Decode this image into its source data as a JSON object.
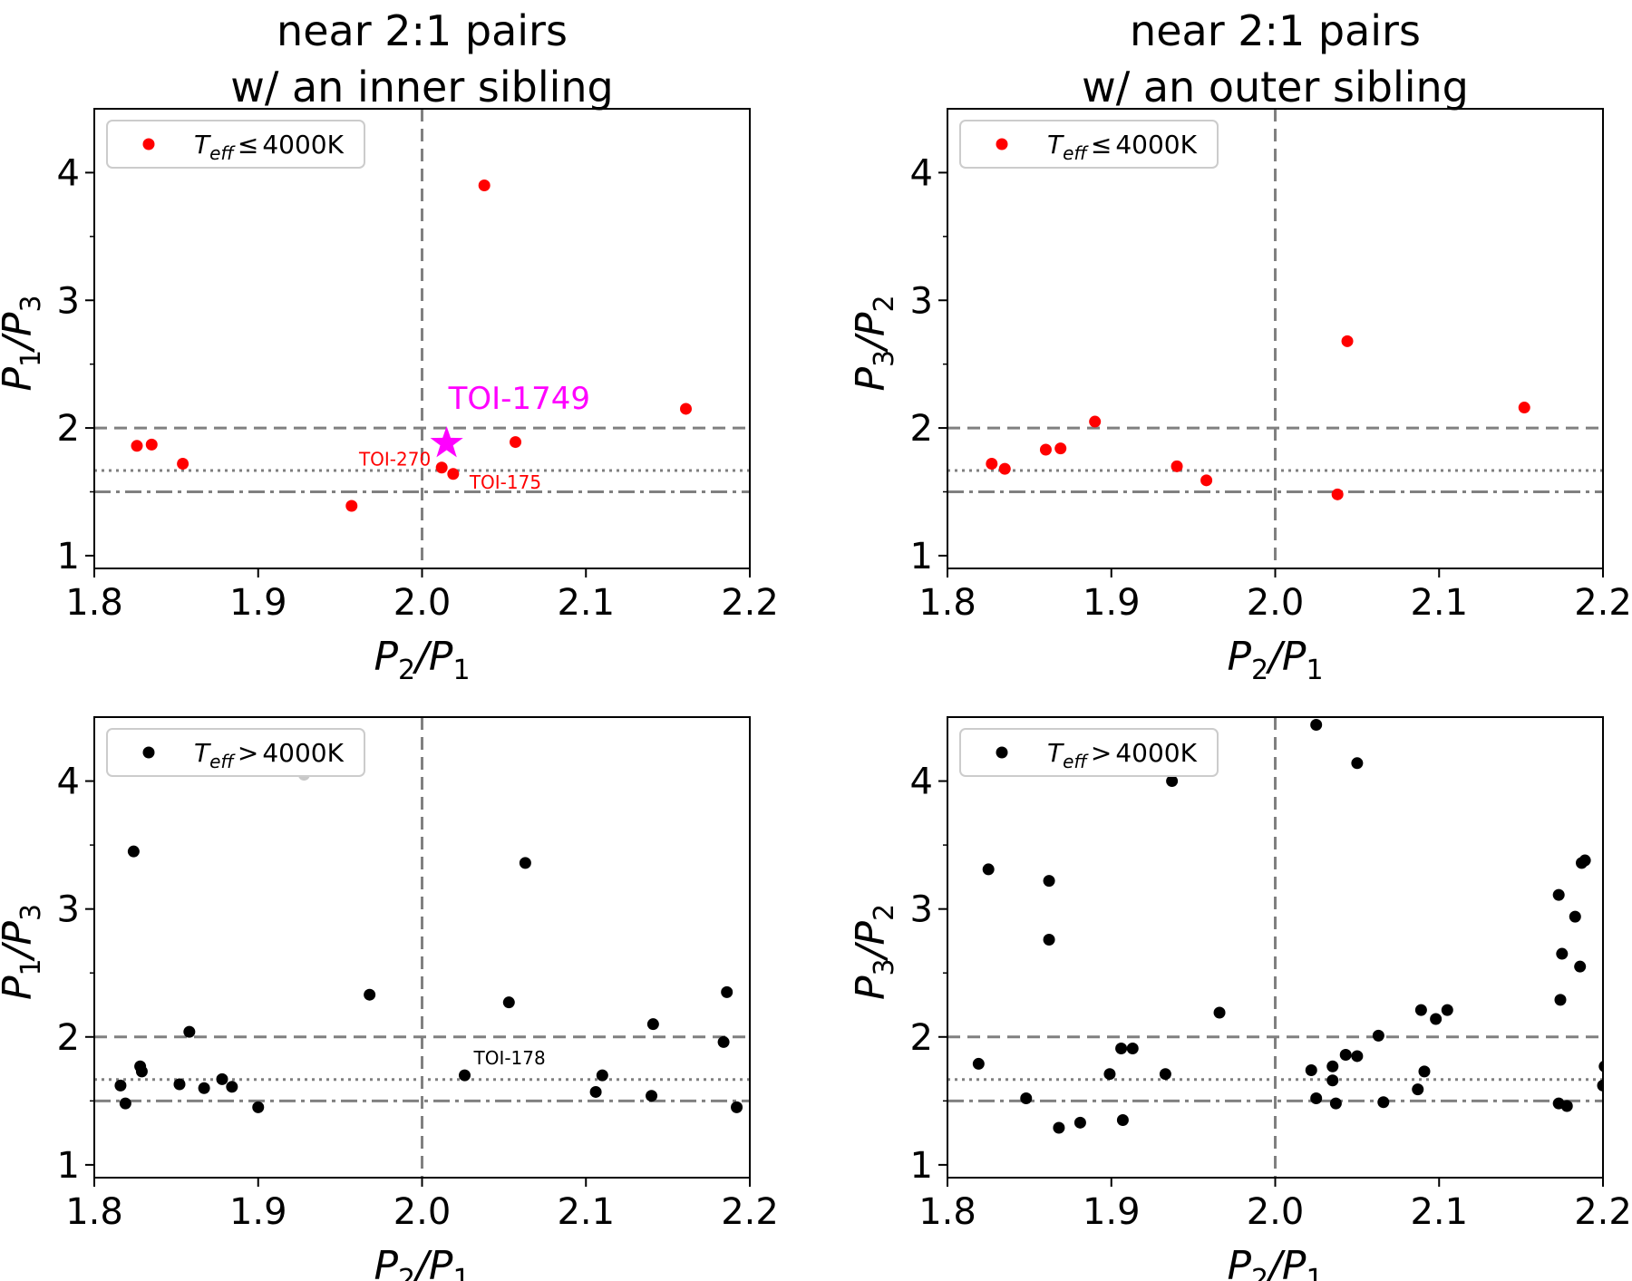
{
  "colors": {
    "cool": "#ff0000",
    "warm": "#000000",
    "outlier": "#c8c8c8",
    "highlight": "#ff00ff",
    "ref_line": "#808080"
  },
  "chart_data": [
    {
      "type": "scatter",
      "title_lines": [
        "near 2:1 pairs",
        "w/ an inner sibling"
      ],
      "xlabel": {
        "main": "P",
        "sub": "2",
        "mid": "/P",
        "sub2": "1"
      },
      "ylabel": {
        "main": "P",
        "sub": "1",
        "mid": "/P",
        "sub2": "3"
      },
      "xlim": [
        1.8,
        2.2
      ],
      "ylim": [
        0.9,
        4.5
      ],
      "xticks": [
        "1.8",
        "1.9",
        "2.0",
        "2.1",
        "2.2"
      ],
      "yticks": [
        "1",
        "2",
        "3",
        "4"
      ],
      "legend": {
        "placement": "upper-left",
        "label": "Teff ≤ 4000K",
        "sym_main": "T",
        "sym_sub": "eff",
        "sym_rel": "≤",
        "sym_val": "4000K"
      },
      "series": [
        {
          "name": "Teff ≤ 4000K",
          "color_key": "cool",
          "points": [
            [
              1.826,
              1.86
            ],
            [
              1.835,
              1.87
            ],
            [
              1.854,
              1.72
            ],
            [
              1.957,
              1.39
            ],
            [
              2.012,
              1.69
            ],
            [
              2.019,
              1.64
            ],
            [
              2.038,
              3.9
            ],
            [
              2.057,
              1.89
            ],
            [
              2.161,
              2.15
            ]
          ]
        }
      ],
      "highlight": {
        "label": "TOI-1749",
        "x": 2.015,
        "y": 1.88
      },
      "annotations": [
        {
          "text": "TOI-270",
          "x": 2.012,
          "y": 1.69,
          "color_key": "cool",
          "side": "left"
        },
        {
          "text": "TOI-175",
          "x": 2.019,
          "y": 1.64,
          "color_key": "cool",
          "side": "right"
        }
      ],
      "hlines": [
        2.0,
        1.6667,
        1.5
      ],
      "vline": 2.0
    },
    {
      "type": "scatter",
      "title_lines": [
        "near 2:1 pairs",
        "w/ an outer sibling"
      ],
      "xlabel": {
        "main": "P",
        "sub": "2",
        "mid": "/P",
        "sub2": "1"
      },
      "ylabel": {
        "main": "P",
        "sub": "3",
        "mid": "/P",
        "sub2": "2"
      },
      "xlim": [
        1.8,
        2.2
      ],
      "ylim": [
        0.9,
        4.5
      ],
      "xticks": [
        "1.8",
        "1.9",
        "2.0",
        "2.1",
        "2.2"
      ],
      "yticks": [
        "1",
        "2",
        "3",
        "4"
      ],
      "legend": {
        "placement": "upper-left",
        "label": "Teff ≤ 4000K",
        "sym_main": "T",
        "sym_sub": "eff",
        "sym_rel": "≤",
        "sym_val": "4000K"
      },
      "series": [
        {
          "name": "Teff ≤ 4000K",
          "color_key": "cool",
          "points": [
            [
              1.827,
              1.72
            ],
            [
              1.835,
              1.68
            ],
            [
              1.86,
              1.83
            ],
            [
              1.869,
              1.84
            ],
            [
              1.89,
              2.05
            ],
            [
              1.94,
              1.7
            ],
            [
              1.958,
              1.59
            ],
            [
              2.038,
              1.48
            ],
            [
              2.044,
              2.68
            ],
            [
              2.152,
              2.16
            ]
          ]
        }
      ],
      "annotations": [],
      "hlines": [
        2.0,
        1.6667,
        1.5
      ],
      "vline": 2.0
    },
    {
      "type": "scatter",
      "title_lines": [],
      "xlabel": {
        "main": "P",
        "sub": "2",
        "mid": "/P",
        "sub2": "1"
      },
      "ylabel": {
        "main": "P",
        "sub": "1",
        "mid": "/P",
        "sub2": "3"
      },
      "xlim": [
        1.8,
        2.2
      ],
      "ylim": [
        0.9,
        4.5
      ],
      "xticks": [
        "1.8",
        "1.9",
        "2.0",
        "2.1",
        "2.2"
      ],
      "yticks": [
        "1",
        "2",
        "3",
        "4"
      ],
      "legend": {
        "placement": "upper-left",
        "label": "Teff > 4000K",
        "sym_main": "T",
        "sym_sub": "eff",
        "sym_rel": ">",
        "sym_val": "4000K"
      },
      "series": [
        {
          "name": "Teff > 4000K",
          "color_key": "warm",
          "points": [
            [
              1.816,
              1.62
            ],
            [
              1.819,
              1.48
            ],
            [
              1.824,
              3.45
            ],
            [
              1.828,
              1.77
            ],
            [
              1.829,
              1.73
            ],
            [
              1.852,
              1.63
            ],
            [
              1.858,
              2.04
            ],
            [
              1.867,
              1.6
            ],
            [
              1.878,
              1.67
            ],
            [
              1.884,
              1.61
            ],
            [
              1.9,
              1.45
            ],
            [
              1.968,
              2.33
            ],
            [
              2.026,
              1.7
            ],
            [
              2.053,
              2.27
            ],
            [
              2.063,
              3.36
            ],
            [
              2.106,
              1.57
            ],
            [
              2.11,
              1.7
            ],
            [
              2.14,
              1.54
            ],
            [
              2.141,
              2.1
            ],
            [
              2.184,
              1.96
            ],
            [
              2.186,
              2.35
            ],
            [
              2.192,
              1.45
            ]
          ]
        },
        {
          "name": "",
          "color_key": "outlier",
          "points": [
            [
              1.928,
              4.05
            ]
          ]
        }
      ],
      "annotations": [
        {
          "text": "TOI-178",
          "x": 2.026,
          "y": 1.7,
          "color_key": "warm",
          "side": "above"
        }
      ],
      "hlines": [
        2.0,
        1.6667,
        1.5
      ],
      "vline": 2.0
    },
    {
      "type": "scatter",
      "title_lines": [],
      "xlabel": {
        "main": "P",
        "sub": "2",
        "mid": "/P",
        "sub2": "1"
      },
      "ylabel": {
        "main": "P",
        "sub": "3",
        "mid": "/P",
        "sub2": "2"
      },
      "xlim": [
        1.8,
        2.2
      ],
      "ylim": [
        0.9,
        4.5
      ],
      "xticks": [
        "1.8",
        "1.9",
        "2.0",
        "2.1",
        "2.2"
      ],
      "yticks": [
        "1",
        "2",
        "3",
        "4"
      ],
      "legend": {
        "placement": "upper-left",
        "label": "Teff > 4000K",
        "sym_main": "T",
        "sym_sub": "eff",
        "sym_rel": ">",
        "sym_val": "4000K"
      },
      "series": [
        {
          "name": "Teff > 4000K",
          "color_key": "warm",
          "points": [
            [
              1.819,
              1.79
            ],
            [
              1.825,
              3.31
            ],
            [
              1.848,
              1.52
            ],
            [
              1.862,
              3.22
            ],
            [
              1.862,
              2.76
            ],
            [
              1.868,
              1.29
            ],
            [
              1.881,
              1.33
            ],
            [
              1.899,
              1.71
            ],
            [
              1.906,
              1.91
            ],
            [
              1.907,
              1.35
            ],
            [
              1.913,
              1.91
            ],
            [
              1.933,
              1.71
            ],
            [
              1.937,
              4.0
            ],
            [
              1.966,
              2.19
            ],
            [
              2.022,
              1.74
            ],
            [
              2.025,
              1.52
            ],
            [
              2.025,
              4.44
            ],
            [
              2.035,
              1.77
            ],
            [
              2.035,
              1.66
            ],
            [
              2.037,
              1.48
            ],
            [
              2.043,
              1.86
            ],
            [
              2.05,
              1.85
            ],
            [
              2.05,
              4.14
            ],
            [
              2.063,
              2.01
            ],
            [
              2.066,
              1.49
            ],
            [
              2.087,
              1.59
            ],
            [
              2.089,
              2.21
            ],
            [
              2.091,
              1.73
            ],
            [
              2.098,
              2.14
            ],
            [
              2.105,
              2.21
            ],
            [
              2.173,
              3.11
            ],
            [
              2.173,
              1.48
            ],
            [
              2.174,
              2.29
            ],
            [
              2.175,
              2.65
            ],
            [
              2.178,
              1.46
            ],
            [
              2.183,
              2.94
            ],
            [
              2.186,
              2.55
            ],
            [
              2.187,
              3.36
            ],
            [
              2.189,
              3.38
            ],
            [
              2.2,
              1.62
            ],
            [
              2.201,
              1.77
            ]
          ]
        }
      ],
      "annotations": [],
      "hlines": [
        2.0,
        1.6667,
        1.5
      ],
      "vline": 2.0
    }
  ]
}
